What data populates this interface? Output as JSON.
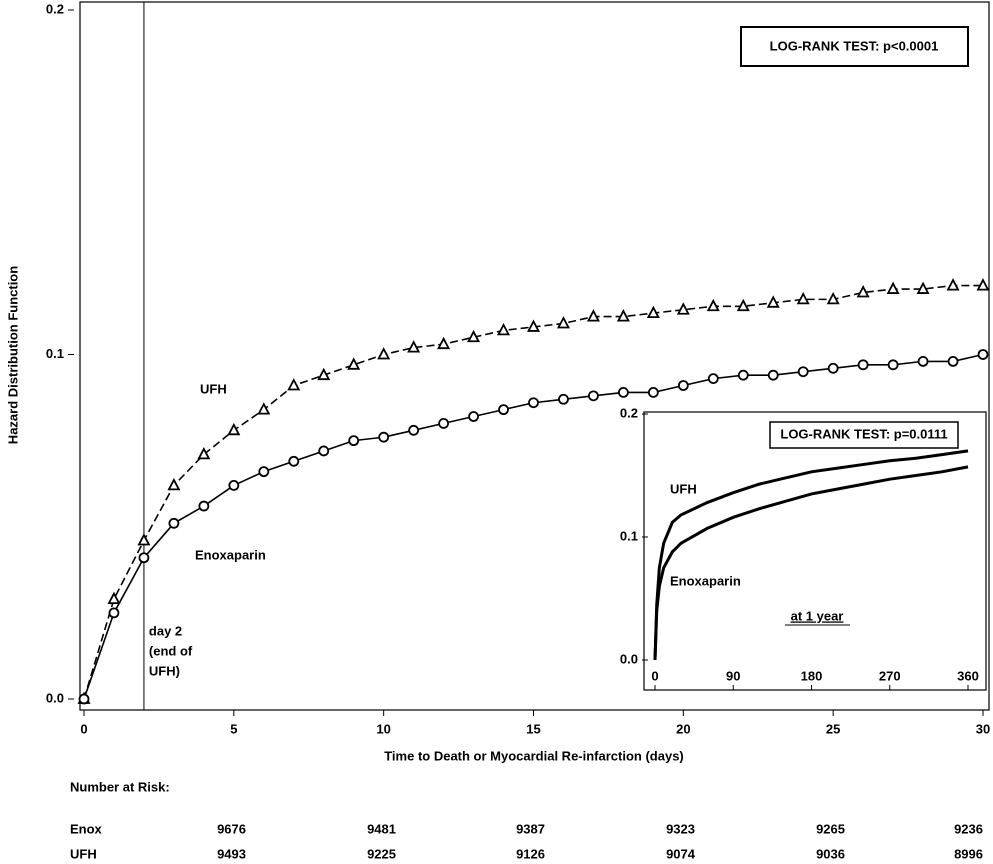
{
  "chart_data": [
    {
      "type": "line",
      "y_label": "Hazard Distribution Function",
      "x_label": "Time to Death or Myocardial Re-infarction (days)",
      "x": [
        0,
        1,
        2,
        3,
        4,
        5,
        6,
        7,
        8,
        9,
        10,
        11,
        12,
        13,
        14,
        15,
        16,
        17,
        18,
        19,
        20,
        21,
        22,
        23,
        24,
        25,
        26,
        27,
        28,
        29,
        30
      ],
      "series": [
        {
          "name": "UFH",
          "color": "#000000",
          "dash": true,
          "marker": "triangle",
          "values": [
            0,
            0.029,
            0.046,
            0.062,
            0.071,
            0.078,
            0.084,
            0.091,
            0.094,
            0.097,
            0.1,
            0.102,
            0.103,
            0.105,
            0.107,
            0.108,
            0.109,
            0.111,
            0.111,
            0.112,
            0.113,
            0.114,
            0.114,
            0.115,
            0.116,
            0.116,
            0.118,
            0.119,
            0.119,
            0.12,
            0.12
          ]
        },
        {
          "name": "Enoxaparin",
          "color": "#000000",
          "dash": false,
          "marker": "circle",
          "values": [
            0,
            0.025,
            0.041,
            0.051,
            0.056,
            0.062,
            0.066,
            0.069,
            0.072,
            0.075,
            0.076,
            0.078,
            0.08,
            0.082,
            0.084,
            0.086,
            0.087,
            0.088,
            0.089,
            0.089,
            0.091,
            0.093,
            0.094,
            0.094,
            0.095,
            0.096,
            0.097,
            0.097,
            0.098,
            0.098,
            0.1
          ]
        }
      ],
      "xlim": [
        0,
        30
      ],
      "xticks": [
        0,
        5,
        10,
        15,
        20,
        25,
        30
      ],
      "ylim": [
        0,
        0.2
      ],
      "yticks": [
        {
          "value": 0,
          "label": "0.0"
        },
        0.1,
        0.2
      ],
      "vline": 2,
      "vline_label": [
        "day 2",
        "(end of",
        "UFH)"
      ],
      "test_label": "LOG-RANK TEST: p<0.0001"
    },
    {
      "type": "line",
      "note": "at 1 year",
      "x": [
        0,
        2,
        5,
        10,
        20,
        30,
        60,
        90,
        120,
        150,
        180,
        210,
        240,
        270,
        300,
        330,
        360
      ],
      "series": [
        {
          "name": "UFH",
          "color": "#000000",
          "values": [
            0,
            0.045,
            0.075,
            0.095,
            0.112,
            0.118,
            0.128,
            0.136,
            0.143,
            0.148,
            0.153,
            0.156,
            0.159,
            0.162,
            0.164,
            0.167,
            0.17
          ]
        },
        {
          "name": "Enoxaparin",
          "color": "#000000",
          "values": [
            0,
            0.04,
            0.06,
            0.075,
            0.088,
            0.095,
            0.107,
            0.116,
            0.123,
            0.129,
            0.135,
            0.139,
            0.143,
            0.147,
            0.15,
            0.153,
            0.157
          ]
        }
      ],
      "xlim": [
        0,
        360
      ],
      "xticks": [
        0,
        90,
        180,
        270,
        360
      ],
      "ylim": [
        0,
        0.2
      ],
      "yticks": [
        {
          "value": 0,
          "label": "0.0"
        },
        0.1,
        0.2
      ],
      "test_label": "LOG-RANK TEST: p=0.0111"
    }
  ],
  "risk_table": {
    "title": "Number at Risk:",
    "rows": [
      {
        "label": "Enox",
        "values": [
          "9676",
          "9481",
          "9387",
          "9323",
          "9265",
          "9236"
        ]
      },
      {
        "label": "UFH",
        "values": [
          "9493",
          "9225",
          "9126",
          "9074",
          "9036",
          "8996"
        ]
      }
    ]
  }
}
